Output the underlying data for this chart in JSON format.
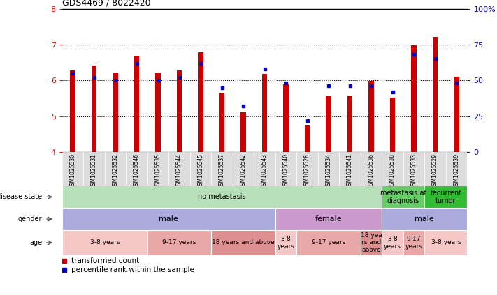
{
  "title": "GDS4469 / 8022420",
  "samples": [
    "GSM1025530",
    "GSM1025531",
    "GSM1025532",
    "GSM1025546",
    "GSM1025535",
    "GSM1025544",
    "GSM1025545",
    "GSM1025537",
    "GSM1025542",
    "GSM1025543",
    "GSM1025540",
    "GSM1025528",
    "GSM1025534",
    "GSM1025541",
    "GSM1025536",
    "GSM1025538",
    "GSM1025533",
    "GSM1025529",
    "GSM1025539"
  ],
  "transformed_count": [
    6.28,
    6.42,
    6.22,
    6.68,
    6.22,
    6.27,
    6.78,
    5.65,
    5.1,
    6.18,
    5.88,
    4.75,
    5.58,
    5.58,
    5.98,
    5.52,
    6.98,
    7.22,
    6.1
  ],
  "percentile_rank": [
    55,
    52,
    50,
    62,
    50,
    52,
    62,
    45,
    32,
    58,
    48,
    22,
    46,
    46,
    46,
    42,
    68,
    65,
    48
  ],
  "ylim_left": [
    4,
    8
  ],
  "ylim_right": [
    0,
    100
  ],
  "yticks_left": [
    4,
    5,
    6,
    7,
    8
  ],
  "yticks_right": [
    0,
    25,
    50,
    75,
    100
  ],
  "bar_color": "#cc0000",
  "dot_color": "#0000cc",
  "bar_width": 0.25,
  "disease_state": {
    "groups": [
      {
        "label": "no metastasis",
        "start": 0,
        "end": 15,
        "color": "#b8e0b8"
      },
      {
        "label": "metastasis at\ndiagnosis",
        "start": 15,
        "end": 17,
        "color": "#66cc66"
      },
      {
        "label": "recurrent\ntumor",
        "start": 17,
        "end": 19,
        "color": "#33bb33"
      }
    ]
  },
  "gender": {
    "groups": [
      {
        "label": "male",
        "start": 0,
        "end": 10,
        "color": "#aaaadd"
      },
      {
        "label": "female",
        "start": 10,
        "end": 15,
        "color": "#cc99cc"
      },
      {
        "label": "male",
        "start": 15,
        "end": 19,
        "color": "#aaaadd"
      }
    ]
  },
  "age": {
    "groups": [
      {
        "label": "3-8 years",
        "start": 0,
        "end": 4,
        "color": "#f5c8c8"
      },
      {
        "label": "9-17 years",
        "start": 4,
        "end": 7,
        "color": "#e8a8a8"
      },
      {
        "label": "18 years and above",
        "start": 7,
        "end": 10,
        "color": "#dd9090"
      },
      {
        "label": "3-8\nyears",
        "start": 10,
        "end": 11,
        "color": "#f5c8c8"
      },
      {
        "label": "9-17 years",
        "start": 11,
        "end": 14,
        "color": "#e8a8a8"
      },
      {
        "label": "18 yea\nrs and\nabove",
        "start": 14,
        "end": 15,
        "color": "#dd9090"
      },
      {
        "label": "3-8\nyears",
        "start": 15,
        "end": 16,
        "color": "#f5c8c8"
      },
      {
        "label": "9-17\nyears",
        "start": 16,
        "end": 17,
        "color": "#e8a8a8"
      },
      {
        "label": "3-8 years",
        "start": 17,
        "end": 19,
        "color": "#f5c8c8"
      }
    ]
  },
  "legend_items": [
    {
      "label": "transformed count",
      "color": "#cc0000"
    },
    {
      "label": "percentile rank within the sample",
      "color": "#0000cc"
    }
  ],
  "xtick_bg": "#dddddd"
}
